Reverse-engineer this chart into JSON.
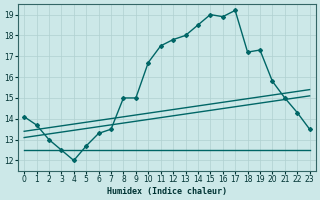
{
  "background_color": "#cce8e8",
  "grid_color": "#b0d0d0",
  "line_color": "#006666",
  "xlabel": "Humidex (Indice chaleur)",
  "xlim": [
    -0.5,
    23.5
  ],
  "ylim": [
    11.5,
    19.5
  ],
  "xticks": [
    0,
    1,
    2,
    3,
    4,
    5,
    6,
    7,
    8,
    9,
    10,
    11,
    12,
    13,
    14,
    15,
    16,
    17,
    18,
    19,
    20,
    21,
    22,
    23
  ],
  "yticks": [
    12,
    13,
    14,
    15,
    16,
    17,
    18,
    19
  ],
  "curve1_x": [
    0,
    1,
    2,
    3,
    4,
    5,
    6,
    7,
    8,
    9,
    10,
    11,
    12,
    13,
    14,
    15,
    16,
    17,
    18,
    19,
    20,
    21,
    22,
    23
  ],
  "curve1_y": [
    14.1,
    13.7,
    13.0,
    12.5,
    12.0,
    12.7,
    13.3,
    13.5,
    15.0,
    15.0,
    16.7,
    17.5,
    17.8,
    18.0,
    18.5,
    19.0,
    18.9,
    19.2,
    17.2,
    17.3,
    15.8,
    15.0,
    14.3,
    13.5
  ],
  "curve2_x": [
    0,
    23
  ],
  "curve2_y": [
    13.1,
    15.1
  ],
  "curve3_x": [
    0,
    23
  ],
  "curve3_y": [
    13.4,
    15.4
  ],
  "curve4_x": [
    0,
    20,
    23
  ],
  "curve4_y": [
    12.5,
    12.5,
    12.5
  ]
}
